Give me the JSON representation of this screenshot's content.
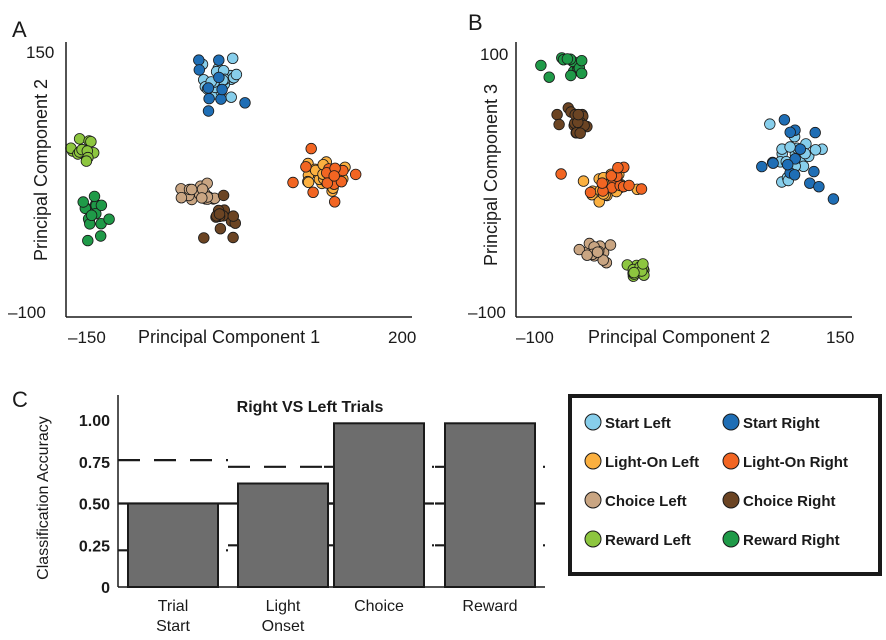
{
  "panels": {
    "a": {
      "letter": "A"
    },
    "b": {
      "letter": "B"
    },
    "c": {
      "letter": "C"
    }
  },
  "colors": {
    "start_left": "#87ceeb",
    "start_right": "#1f6eb5",
    "lighton_left": "#fbb040",
    "lighton_right": "#f26522",
    "choice_left": "#c9a582",
    "choice_right": "#6b4423",
    "reward_left": "#8dc63f",
    "reward_right": "#1f9a48",
    "bar_fill": "#6d6d6d"
  },
  "legend": {
    "items": [
      {
        "label": "Start Left",
        "color": "#87ceeb"
      },
      {
        "label": "Start Right",
        "color": "#1f6eb5"
      },
      {
        "label": "Light-On Left",
        "color": "#fbb040"
      },
      {
        "label": "Light-On Right",
        "color": "#f26522"
      },
      {
        "label": "Choice Left",
        "color": "#c9a582"
      },
      {
        "label": "Choice Right",
        "color": "#6b4423"
      },
      {
        "label": "Reward Left",
        "color": "#8dc63f"
      },
      {
        "label": "Reward Right",
        "color": "#1f9a48"
      }
    ]
  },
  "chart_data": [
    {
      "type": "scatter",
      "panel": "A",
      "title": "",
      "xlabel": "Principal Component 1",
      "ylabel": "Principal Component 2",
      "xlim": [
        -150,
        200
      ],
      "ylim": [
        -100,
        150
      ],
      "xtick_labels": [
        "–150",
        "200"
      ],
      "ytick_labels": [
        "150",
        "–100"
      ],
      "clusters": [
        {
          "name": "Start Left",
          "color": "#87ceeb",
          "center": [
            10,
            120
          ],
          "spread": [
            12,
            10
          ],
          "n": 22
        },
        {
          "name": "Start Right",
          "color": "#1f6eb5",
          "center": [
            5,
            118
          ],
          "spread": [
            18,
            13
          ],
          "n": 10
        },
        {
          "name": "Light-On Left",
          "color": "#fbb040",
          "center": [
            115,
            25
          ],
          "spread": [
            14,
            10
          ],
          "n": 22
        },
        {
          "name": "Light-On Right",
          "color": "#f26522",
          "center": [
            122,
            22
          ],
          "spread": [
            20,
            12
          ],
          "n": 14
        },
        {
          "name": "Choice Left",
          "color": "#c9a582",
          "center": [
            -15,
            10
          ],
          "spread": [
            10,
            6
          ],
          "n": 18
        },
        {
          "name": "Choice Right",
          "color": "#6b4423",
          "center": [
            12,
            -15
          ],
          "spread": [
            9,
            10
          ],
          "n": 14
        },
        {
          "name": "Reward Left",
          "color": "#8dc63f",
          "center": [
            -138,
            50
          ],
          "spread": [
            6,
            9
          ],
          "n": 14
        },
        {
          "name": "Reward Right",
          "color": "#1f9a48",
          "center": [
            -126,
            -12
          ],
          "spread": [
            7,
            10
          ],
          "n": 18
        }
      ]
    },
    {
      "type": "scatter",
      "panel": "B",
      "title": "",
      "xlabel": "Principal Component 2",
      "ylabel": "Principal Component 3",
      "xlim": [
        -100,
        150
      ],
      "ylim": [
        -100,
        100
      ],
      "xtick_labels": [
        "–100",
        "150"
      ],
      "ytick_labels": [
        "100",
        "–100"
      ],
      "clusters": [
        {
          "name": "Start Left",
          "color": "#87ceeb",
          "center": [
            110,
            12
          ],
          "spread": [
            9,
            10
          ],
          "n": 22
        },
        {
          "name": "Start Right",
          "color": "#1f6eb5",
          "center": [
            108,
            10
          ],
          "spread": [
            12,
            13
          ],
          "n": 16
        },
        {
          "name": "Light-On Left",
          "color": "#fbb040",
          "center": [
            -35,
            -8
          ],
          "spread": [
            9,
            6
          ],
          "n": 22
        },
        {
          "name": "Light-On Right",
          "color": "#f26522",
          "center": [
            -30,
            -4
          ],
          "spread": [
            11,
            7
          ],
          "n": 14
        },
        {
          "name": "Choice Left",
          "color": "#c9a582",
          "center": [
            -46,
            -58
          ],
          "spread": [
            6,
            5
          ],
          "n": 16
        },
        {
          "name": "Choice Right",
          "color": "#6b4423",
          "center": [
            -58,
            42
          ],
          "spread": [
            7,
            5
          ],
          "n": 18
        },
        {
          "name": "Reward Left",
          "color": "#8dc63f",
          "center": [
            -12,
            -72
          ],
          "spread": [
            6,
            3
          ],
          "n": 16
        },
        {
          "name": "Reward Right",
          "color": "#1f9a48",
          "center": [
            -66,
            86
          ],
          "spread": [
            6,
            6
          ],
          "n": 14
        }
      ]
    },
    {
      "type": "bar",
      "panel": "C",
      "title": "Right VS Left Trials",
      "xlabel": "",
      "ylabel": "Classification Accuracy",
      "ylim": [
        0,
        1.05
      ],
      "yticks": [
        0,
        0.25,
        0.5,
        0.75,
        1.0
      ],
      "ytick_labels": [
        "0",
        "0.25",
        "0.50",
        "0.75",
        "1.00"
      ],
      "categories": [
        {
          "lines": [
            "Trial",
            "Start"
          ]
        },
        {
          "lines": [
            "Light",
            "Onset"
          ]
        },
        {
          "lines": [
            "Choice"
          ]
        },
        {
          "lines": [
            "Reward"
          ]
        }
      ],
      "values": [
        0.5,
        0.62,
        0.98,
        0.98
      ],
      "chance_upper": [
        0.76,
        0.72,
        0.72,
        0.72
      ],
      "chance_mean": [
        0.5,
        0.5,
        0.5,
        0.5
      ],
      "chance_lower": [
        0.22,
        0.25,
        0.25,
        0.25
      ],
      "grid": false
    }
  ]
}
